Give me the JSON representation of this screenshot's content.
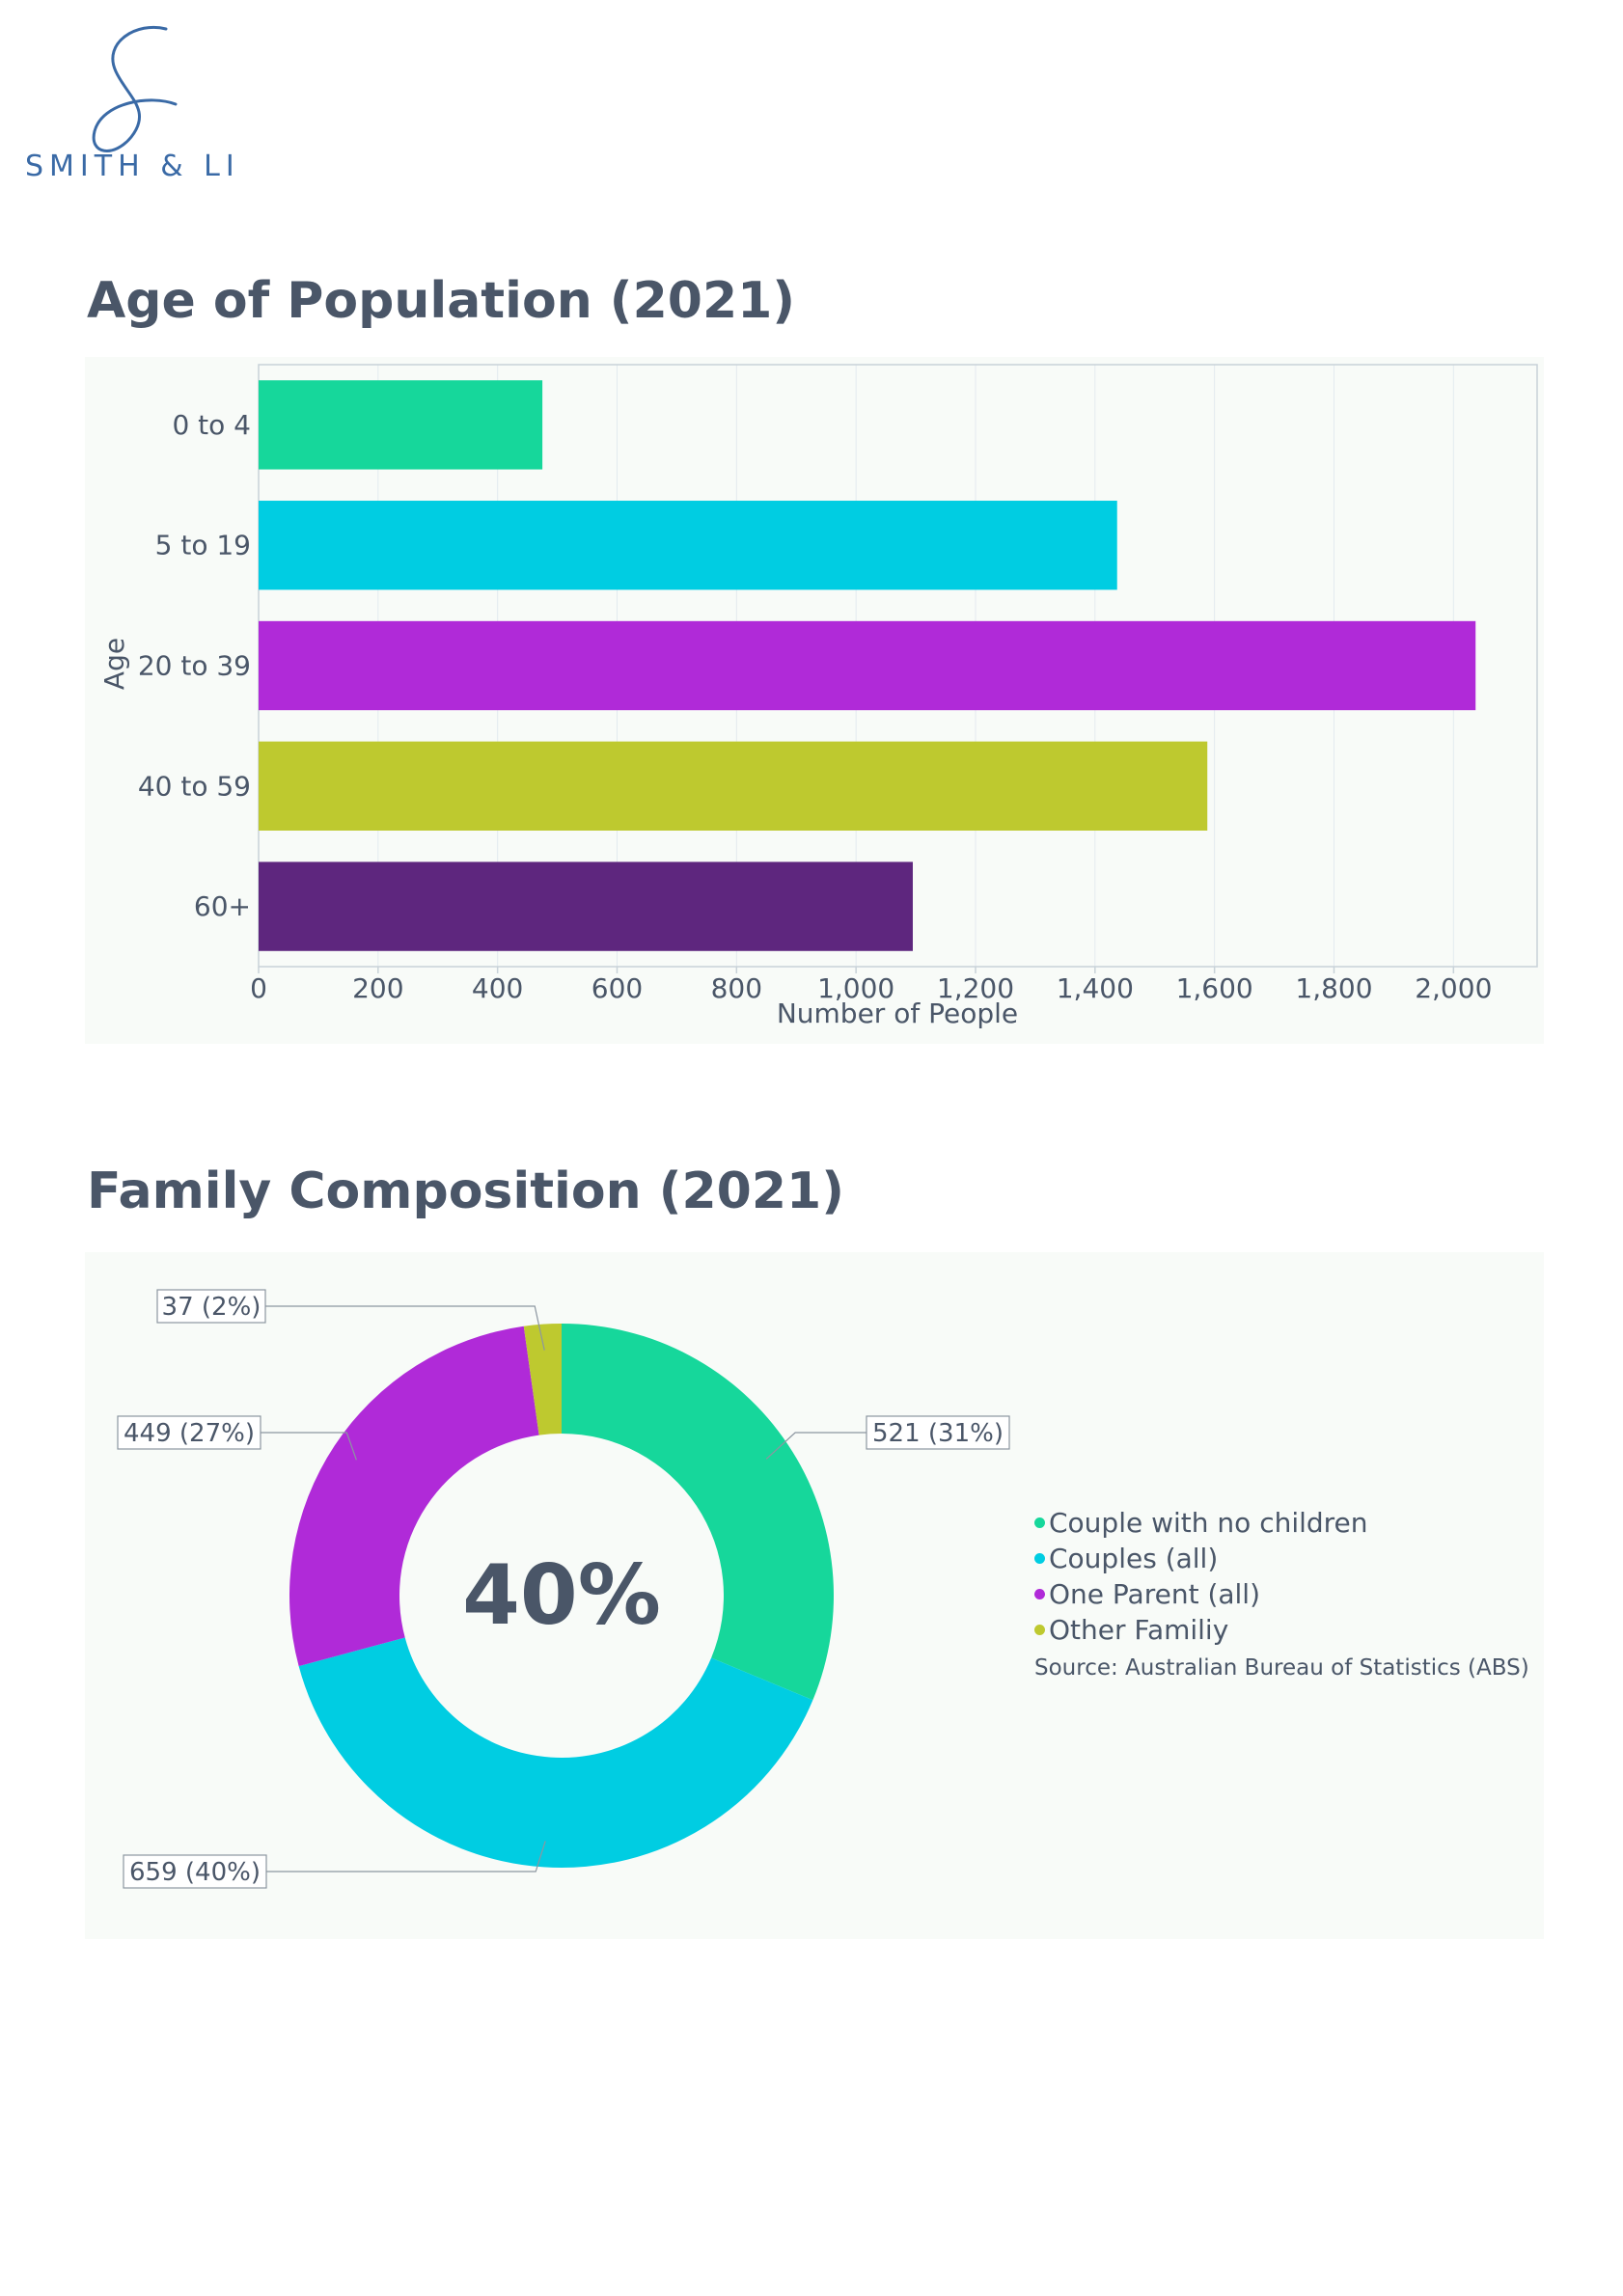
{
  "brand": {
    "name": "SMITH & LI"
  },
  "colors": {
    "green": "#16d79b",
    "cyan": "#00cde2",
    "magenta": "#b02ad8",
    "olive": "#bec92f",
    "purple": "#5e267e",
    "title": "#4a5668",
    "background": "#f8fbf8"
  },
  "sections": {
    "age_title": "Age of Population (2021)",
    "family_title": "Family Composition (2021)"
  },
  "chart_data": [
    {
      "type": "bar",
      "orientation": "horizontal",
      "title": "Age of Population (2021)",
      "xlabel": "Number of People",
      "ylabel": "Age",
      "categories": [
        "0 to 4",
        "5 to 19",
        "20 to 39",
        "40 to 59",
        "60+"
      ],
      "values": [
        475,
        1437,
        2037,
        1588,
        1095
      ],
      "colors": [
        "#16d79b",
        "#00cde2",
        "#b02ad8",
        "#bec92f",
        "#5e267e"
      ],
      "xlim": [
        0,
        2140
      ],
      "xticks": [
        0,
        200,
        400,
        600,
        800,
        1000,
        1200,
        1400,
        1600,
        1800,
        2000
      ],
      "xtick_labels": [
        "0",
        "200",
        "400",
        "600",
        "800",
        "1,000",
        "1,200",
        "1,400",
        "1,600",
        "1,800",
        "2,000"
      ],
      "grid": true
    },
    {
      "type": "pie",
      "title": "Family Composition (2021)",
      "hole": true,
      "center_text": "40%",
      "slices": [
        {
          "name": "Couple with no children",
          "value": 521,
          "label": "521 (31%)",
          "color": "#16d79b"
        },
        {
          "name": "Couples (all)",
          "value": 659,
          "label": "659 (40%)",
          "color": "#00cde2"
        },
        {
          "name": "One Parent (all)",
          "value": 449,
          "label": "449 (27%)",
          "color": "#b02ad8"
        },
        {
          "name": "Other Familiy",
          "value": 37,
          "label": "37 (2%)",
          "color": "#bec92f"
        }
      ],
      "legend": "right",
      "source": "Source: Australian Bureau of Statistics (ABS)"
    }
  ]
}
